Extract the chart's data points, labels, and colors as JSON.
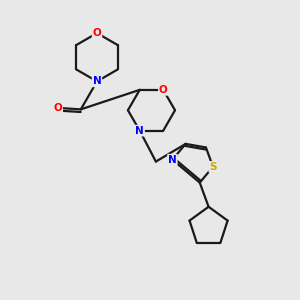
{
  "background_color": "#e8e8e8",
  "bond_color": "#1a1a1a",
  "atom_colors": {
    "O": "#ff0000",
    "N": "#0000ff",
    "S": "#ccaa00",
    "C": "#1a1a1a"
  },
  "figsize": [
    3.0,
    3.0
  ],
  "dpi": 100,
  "xlim": [
    0,
    10
  ],
  "ylim": [
    0,
    10
  ]
}
